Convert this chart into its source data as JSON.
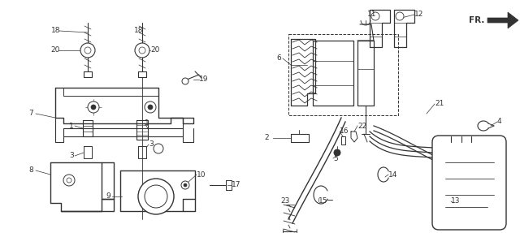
{
  "bg_color": "#ffffff",
  "line_color": "#333333",
  "fig_width": 6.4,
  "fig_height": 2.87,
  "dpi": 100
}
